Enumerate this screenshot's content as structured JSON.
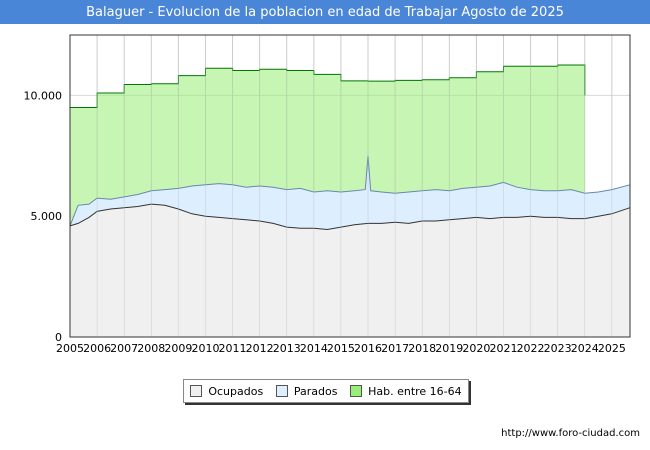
{
  "title": "Balaguer - Evolucion de la poblacion en edad de Trabajar Agosto de 2025",
  "footer_url": "http://www.foro-ciudad.com",
  "legend": [
    {
      "label": "Ocupados",
      "color": "#f0f0f0"
    },
    {
      "label": "Parados",
      "color": "#ddeeff"
    },
    {
      "label": "Hab. entre 16-64",
      "color": "#99ee77"
    }
  ],
  "chart_data": {
    "type": "area",
    "title": "Balaguer - Evolucion de la poblacion en edad de Trabajar Agosto de 2025",
    "xlabel": "",
    "ylabel": "",
    "ylim": [
      0,
      12500
    ],
    "xlim": [
      2005,
      2025.67
    ],
    "yticks": [
      0,
      5000,
      10000
    ],
    "ytick_labels": [
      "0",
      "5.000",
      "10.000"
    ],
    "xticks": [
      2005,
      2006,
      2007,
      2008,
      2009,
      2010,
      2011,
      2012,
      2013,
      2014,
      2015,
      2016,
      2017,
      2018,
      2019,
      2020,
      2021,
      2022,
      2023,
      2024,
      2025
    ],
    "xtick_labels": [
      "2005",
      "2006",
      "2007",
      "2008",
      "2009",
      "2010",
      "2011",
      "2012",
      "2013",
      "2014",
      "2015",
      "2016",
      "2017",
      "2018",
      "2019",
      "2020",
      "2021",
      "2022",
      "2023",
      "2024",
      "2025"
    ],
    "grid": true,
    "series": [
      {
        "name": "Hab. entre 16-64",
        "color": "#99ee77",
        "line_color": "#007700",
        "x": [
          2005,
          2006,
          2007,
          2008,
          2009,
          2010,
          2011,
          2012,
          2013,
          2014,
          2015,
          2016,
          2017,
          2018,
          2019,
          2020,
          2021,
          2022,
          2023,
          2024
        ],
        "values": [
          9500,
          10100,
          10450,
          10480,
          10820,
          11120,
          11030,
          11080,
          11030,
          10870,
          10600,
          10590,
          10620,
          10650,
          10730,
          10980,
          11210,
          11210,
          11260,
          10000
        ]
      },
      {
        "name": "Parados",
        "color": "#ddeeff",
        "line_color": "#6688aa",
        "x": [
          2005,
          2005.3,
          2005.7,
          2006,
          2006.5,
          2007,
          2007.5,
          2008,
          2008.5,
          2009,
          2009.5,
          2010,
          2010.5,
          2011,
          2011.5,
          2012,
          2012.5,
          2013,
          2013.5,
          2014,
          2014.5,
          2015,
          2015.5,
          2015.9,
          2016,
          2016.1,
          2016.5,
          2017,
          2017.5,
          2018,
          2018.5,
          2019,
          2019.5,
          2020,
          2020.5,
          2021,
          2021.5,
          2022,
          2022.5,
          2023,
          2023.5,
          2024,
          2024.5,
          2025,
          2025.67
        ],
        "values": [
          4600,
          5450,
          5500,
          5750,
          5700,
          5800,
          5900,
          6050,
          6100,
          6150,
          6250,
          6300,
          6350,
          6300,
          6200,
          6250,
          6200,
          6100,
          6150,
          6000,
          6050,
          6000,
          6050,
          6100,
          7500,
          6050,
          6000,
          5950,
          6000,
          6050,
          6100,
          6050,
          6150,
          6200,
          6250,
          6400,
          6200,
          6100,
          6050,
          6050,
          6100,
          5950,
          6000,
          6100,
          6300
        ]
      },
      {
        "name": "Ocupados",
        "color": "#f0f0f0",
        "line_color": "#333333",
        "x": [
          2005,
          2005.3,
          2005.7,
          2006,
          2006.5,
          2007,
          2007.5,
          2008,
          2008.5,
          2009,
          2009.5,
          2010,
          2010.5,
          2011,
          2011.5,
          2012,
          2012.5,
          2013,
          2013.5,
          2014,
          2014.5,
          2015,
          2015.5,
          2016,
          2016.5,
          2017,
          2017.5,
          2018,
          2018.5,
          2019,
          2019.5,
          2020,
          2020.5,
          2021,
          2021.5,
          2022,
          2022.5,
          2023,
          2023.5,
          2024,
          2024.5,
          2025,
          2025.67
        ],
        "values": [
          4600,
          4700,
          4950,
          5200,
          5300,
          5350,
          5400,
          5500,
          5450,
          5300,
          5100,
          5000,
          4950,
          4900,
          4850,
          4800,
          4700,
          4550,
          4500,
          4500,
          4450,
          4550,
          4650,
          4700,
          4700,
          4750,
          4700,
          4800,
          4800,
          4850,
          4900,
          4950,
          4900,
          4950,
          4950,
          5000,
          4950,
          4950,
          4900,
          4900,
          5000,
          5100,
          5350
        ]
      }
    ]
  }
}
